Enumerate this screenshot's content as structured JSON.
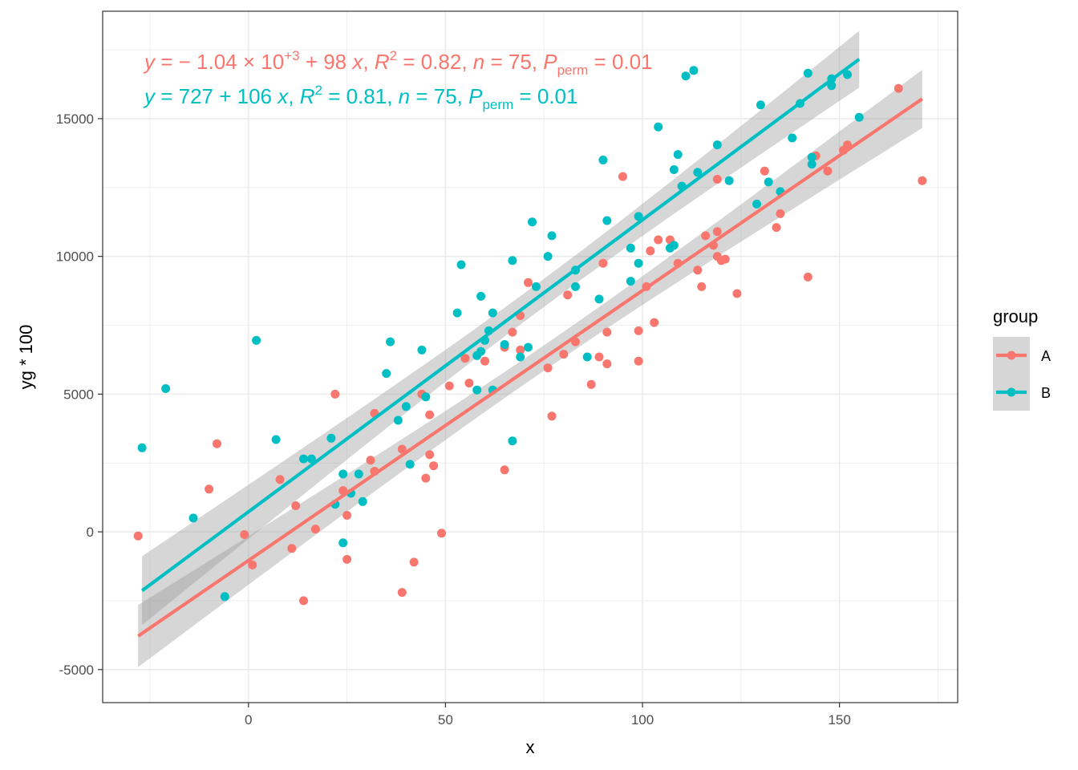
{
  "chart_data": {
    "type": "scatter",
    "xlabel": "x",
    "ylabel": "yg * 100",
    "xlim": [
      -37,
      180
    ],
    "ylim": [
      -6200,
      18900
    ],
    "x_ticks": [
      0,
      50,
      100,
      150
    ],
    "y_ticks": [
      -5000,
      0,
      5000,
      10000,
      15000
    ],
    "x_tick_labels": [
      "0",
      "50",
      "100",
      "150"
    ],
    "y_tick_labels": [
      "-5000",
      "0",
      "5000",
      "10000",
      "15000"
    ],
    "grid": true,
    "legend": {
      "title": "group",
      "placement": "right",
      "entries": [
        "A",
        "B"
      ]
    },
    "annotations": [
      {
        "series": "A",
        "color": "#F8766D",
        "parts": [
          {
            "t": "y",
            "s": "i"
          },
          {
            "t": " = − 1.04 × 10",
            "s": "n"
          },
          {
            "t": "+3",
            "s": "sup"
          },
          {
            "t": " + 98 ",
            "s": "n"
          },
          {
            "t": "x",
            "s": "i"
          },
          {
            "t": ", ",
            "s": "n"
          },
          {
            "t": "R",
            "s": "i"
          },
          {
            "t": "2",
            "s": "sup"
          },
          {
            "t": " = 0.82, ",
            "s": "n"
          },
          {
            "t": "n",
            "s": "i"
          },
          {
            "t": " = 75, ",
            "s": "n"
          },
          {
            "t": "P",
            "s": "i"
          },
          {
            "t": "perm",
            "s": "sub"
          },
          {
            "t": " = 0.01",
            "s": "n"
          }
        ]
      },
      {
        "series": "B",
        "color": "#00BFC4",
        "parts": [
          {
            "t": "y",
            "s": "i"
          },
          {
            "t": " = 727 + 106 ",
            "s": "n"
          },
          {
            "t": "x",
            "s": "i"
          },
          {
            "t": ", ",
            "s": "n"
          },
          {
            "t": "R",
            "s": "i"
          },
          {
            "t": "2",
            "s": "sup"
          },
          {
            "t": " = 0.81, ",
            "s": "n"
          },
          {
            "t": "n",
            "s": "i"
          },
          {
            "t": " = 75, ",
            "s": "n"
          },
          {
            "t": "P",
            "s": "i"
          },
          {
            "t": "perm",
            "s": "sub"
          },
          {
            "t": " = 0.01",
            "s": "n"
          }
        ]
      }
    ],
    "series": [
      {
        "name": "A",
        "color": "#F8766D",
        "fit": {
          "intercept": -1040,
          "slope": 98,
          "x_range": [
            -28,
            171
          ]
        },
        "points": [
          [
            -28,
            -150
          ],
          [
            -10,
            1550
          ],
          [
            -8,
            3200
          ],
          [
            -1,
            -100
          ],
          [
            1,
            -1200
          ],
          [
            8,
            1900
          ],
          [
            11,
            -600
          ],
          [
            12,
            950
          ],
          [
            14,
            -2500
          ],
          [
            17,
            100
          ],
          [
            22,
            5000
          ],
          [
            24,
            1500
          ],
          [
            25,
            -1000
          ],
          [
            25,
            600
          ],
          [
            31,
            2600
          ],
          [
            32,
            2200
          ],
          [
            32,
            4300
          ],
          [
            39,
            -2200
          ],
          [
            39,
            3000
          ],
          [
            42,
            -1100
          ],
          [
            44,
            5000
          ],
          [
            45,
            1950
          ],
          [
            46,
            4250
          ],
          [
            46,
            2800
          ],
          [
            47,
            2400
          ],
          [
            49,
            -50
          ],
          [
            51,
            5300
          ],
          [
            55,
            6300
          ],
          [
            56,
            5400
          ],
          [
            60,
            6200
          ],
          [
            65,
            6700
          ],
          [
            65,
            2250
          ],
          [
            67,
            7250
          ],
          [
            69,
            7850
          ],
          [
            69,
            6600
          ],
          [
            71,
            9050
          ],
          [
            76,
            5950
          ],
          [
            77,
            4200
          ],
          [
            80,
            6450
          ],
          [
            81,
            8600
          ],
          [
            83,
            6900
          ],
          [
            87,
            5350
          ],
          [
            89,
            6350
          ],
          [
            90,
            9750
          ],
          [
            91,
            7250
          ],
          [
            91,
            6100
          ],
          [
            95,
            12900
          ],
          [
            99,
            7300
          ],
          [
            99,
            6200
          ],
          [
            101,
            8900
          ],
          [
            102,
            10200
          ],
          [
            103,
            7600
          ],
          [
            104,
            10600
          ],
          [
            107,
            10600
          ],
          [
            109,
            9750
          ],
          [
            114,
            9500
          ],
          [
            115,
            8900
          ],
          [
            116,
            10750
          ],
          [
            118,
            10400
          ],
          [
            119,
            10000
          ],
          [
            119,
            12800
          ],
          [
            119,
            10900
          ],
          [
            120,
            9850
          ],
          [
            121,
            9900
          ],
          [
            124,
            8650
          ],
          [
            131,
            13100
          ],
          [
            134,
            11050
          ],
          [
            135,
            11550
          ],
          [
            142,
            9250
          ],
          [
            144,
            13650
          ],
          [
            147,
            13100
          ],
          [
            151,
            13850
          ],
          [
            152,
            14050
          ],
          [
            165,
            16100
          ],
          [
            171,
            12750
          ]
        ]
      },
      {
        "name": "B",
        "color": "#00BFC4",
        "fit": {
          "intercept": 727,
          "slope": 106,
          "x_range": [
            -27,
            155
          ]
        },
        "points": [
          [
            -27,
            3050
          ],
          [
            -21,
            5200
          ],
          [
            -14,
            500
          ],
          [
            -6,
            -2350
          ],
          [
            2,
            6950
          ],
          [
            7,
            3350
          ],
          [
            14,
            2650
          ],
          [
            16,
            2650
          ],
          [
            21,
            3400
          ],
          [
            22,
            1000
          ],
          [
            24,
            2100
          ],
          [
            24,
            -400
          ],
          [
            26,
            1400
          ],
          [
            28,
            2100
          ],
          [
            29,
            1100
          ],
          [
            35,
            5750
          ],
          [
            36,
            6900
          ],
          [
            38,
            4050
          ],
          [
            40,
            4550
          ],
          [
            41,
            2450
          ],
          [
            44,
            6600
          ],
          [
            45,
            4900
          ],
          [
            53,
            7950
          ],
          [
            54,
            9700
          ],
          [
            58,
            6400
          ],
          [
            58,
            5150
          ],
          [
            59,
            8550
          ],
          [
            59,
            6550
          ],
          [
            60,
            6950
          ],
          [
            61,
            7300
          ],
          [
            62,
            7950
          ],
          [
            62,
            5150
          ],
          [
            65,
            6800
          ],
          [
            67,
            9850
          ],
          [
            67,
            3300
          ],
          [
            69,
            6350
          ],
          [
            71,
            6700
          ],
          [
            72,
            11250
          ],
          [
            73,
            8900
          ],
          [
            76,
            10000
          ],
          [
            77,
            10750
          ],
          [
            83,
            9500
          ],
          [
            83,
            8900
          ],
          [
            86,
            6350
          ],
          [
            89,
            8450
          ],
          [
            90,
            13500
          ],
          [
            91,
            11300
          ],
          [
            97,
            10300
          ],
          [
            97,
            9100
          ],
          [
            99,
            11450
          ],
          [
            99,
            9750
          ],
          [
            104,
            14700
          ],
          [
            107,
            10300
          ],
          [
            108,
            13150
          ],
          [
            108,
            10400
          ],
          [
            109,
            13700
          ],
          [
            110,
            12550
          ],
          [
            111,
            16550
          ],
          [
            113,
            16750
          ],
          [
            114,
            13050
          ],
          [
            119,
            14050
          ],
          [
            122,
            12750
          ],
          [
            129,
            11900
          ],
          [
            130,
            15500
          ],
          [
            132,
            12700
          ],
          [
            135,
            12350
          ],
          [
            138,
            14300
          ],
          [
            140,
            15550
          ],
          [
            142,
            16650
          ],
          [
            143,
            13350
          ],
          [
            143,
            13600
          ],
          [
            148,
            16450
          ],
          [
            148,
            16200
          ],
          [
            152,
            16600
          ],
          [
            155,
            15050
          ]
        ]
      }
    ]
  }
}
